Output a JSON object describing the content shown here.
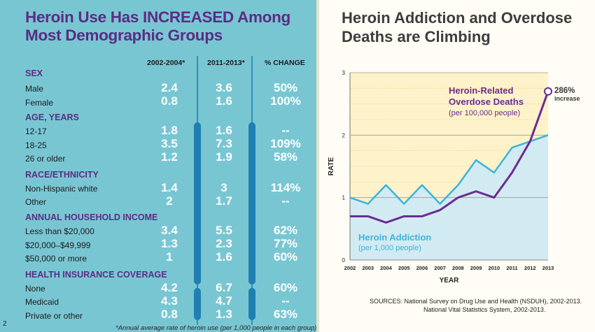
{
  "left_panel": {
    "title": "Heroin Use Has INCREASED Among Most Demographic Groups",
    "columns": [
      "2002-2004*",
      "2011-2013*",
      "% CHANGE"
    ],
    "sections": [
      {
        "heading": "SEX",
        "rows": [
          {
            "label": "Male",
            "v1": "2.4",
            "v2": "3.6",
            "change": "50%"
          },
          {
            "label": "Female",
            "v1": "0.8",
            "v2": "1.6",
            "change": "100%"
          }
        ]
      },
      {
        "heading": "AGE, YEARS",
        "rows": [
          {
            "label": "12-17",
            "v1": "1.8",
            "v2": "1.6",
            "change": "--"
          },
          {
            "label": "18-25",
            "v1": "3.5",
            "v2": "7.3",
            "change": "109%"
          },
          {
            "label": "26 or older",
            "v1": "1.2",
            "v2": "1.9",
            "change": "58%"
          }
        ]
      },
      {
        "heading": "RACE/ETHNICITY",
        "rows": [
          {
            "label": "Non-Hispanic white",
            "v1": "1.4",
            "v2": "3",
            "change": "114%"
          },
          {
            "label": "Other",
            "v1": "2",
            "v2": "1.7",
            "change": "--"
          }
        ]
      },
      {
        "heading": "ANNUAL HOUSEHOLD INCOME",
        "rows": [
          {
            "label": "Less than $20,000",
            "v1": "3.4",
            "v2": "5.5",
            "change": "62%"
          },
          {
            "label": "$20,000–$49,999",
            "v1": "1.3",
            "v2": "2.3",
            "change": "77%"
          },
          {
            "label": "$50,000 or more",
            "v1": "1",
            "v2": "1.6",
            "change": "60%"
          }
        ]
      },
      {
        "heading": "HEALTH INSURANCE COVERAGE",
        "rows": [
          {
            "label": "None",
            "v1": "4.2",
            "v2": "6.7",
            "change": "60%"
          },
          {
            "label": "Medicaid",
            "v1": "4.3",
            "v2": "4.7",
            "change": "--"
          },
          {
            "label": "Private or other",
            "v1": "0.8",
            "v2": "1.3",
            "change": "63%"
          }
        ]
      }
    ],
    "page_number": "2",
    "footnote": "*Annual average rate of heroin use (per 1,000 people in each group)"
  },
  "right_panel": {
    "title": "Heroin Addiction and Overdose Deaths are Climbing",
    "sources_line1": "SOURCES: National Survey on Drug Use and Health (NSDUH), 2002-2013.",
    "sources_line2": "National Vital Statistics System, 2002-2013."
  },
  "colors": {
    "left_bg": "#79c6d3",
    "title_purple": "#5b2c83",
    "deaths_line": "#6a2c91",
    "addiction_line": "#3eb3d9",
    "addiction_fill": "#cdeaf6",
    "chart_bg": "#fdf2c9"
  },
  "chart_data": {
    "type": "line",
    "xlabel": "YEAR",
    "ylabel": "RATE",
    "x": [
      2002,
      2003,
      2004,
      2005,
      2006,
      2007,
      2008,
      2009,
      2010,
      2011,
      2012,
      2013
    ],
    "ylim": [
      0,
      3
    ],
    "yticks": [
      0,
      1,
      2,
      3
    ],
    "grid": true,
    "series": [
      {
        "name": "Heroin-Related Overdose Deaths",
        "label_line1": "Heroin-Related",
        "label_line2": "Overdose Deaths",
        "sublabel": "(per 100,000 people)",
        "values": [
          0.7,
          0.7,
          0.6,
          0.7,
          0.7,
          0.8,
          1.0,
          1.1,
          1.0,
          1.4,
          1.9,
          2.7
        ]
      },
      {
        "name": "Heroin Addiction",
        "label_line1": "Heroin Addiction",
        "sublabel": "(per 1,000 people)",
        "values": [
          1.0,
          0.9,
          1.2,
          0.9,
          1.2,
          0.9,
          1.2,
          1.6,
          1.4,
          1.8,
          1.9,
          2.0
        ]
      }
    ],
    "annotation": {
      "value": "286%",
      "text": "increase"
    }
  }
}
